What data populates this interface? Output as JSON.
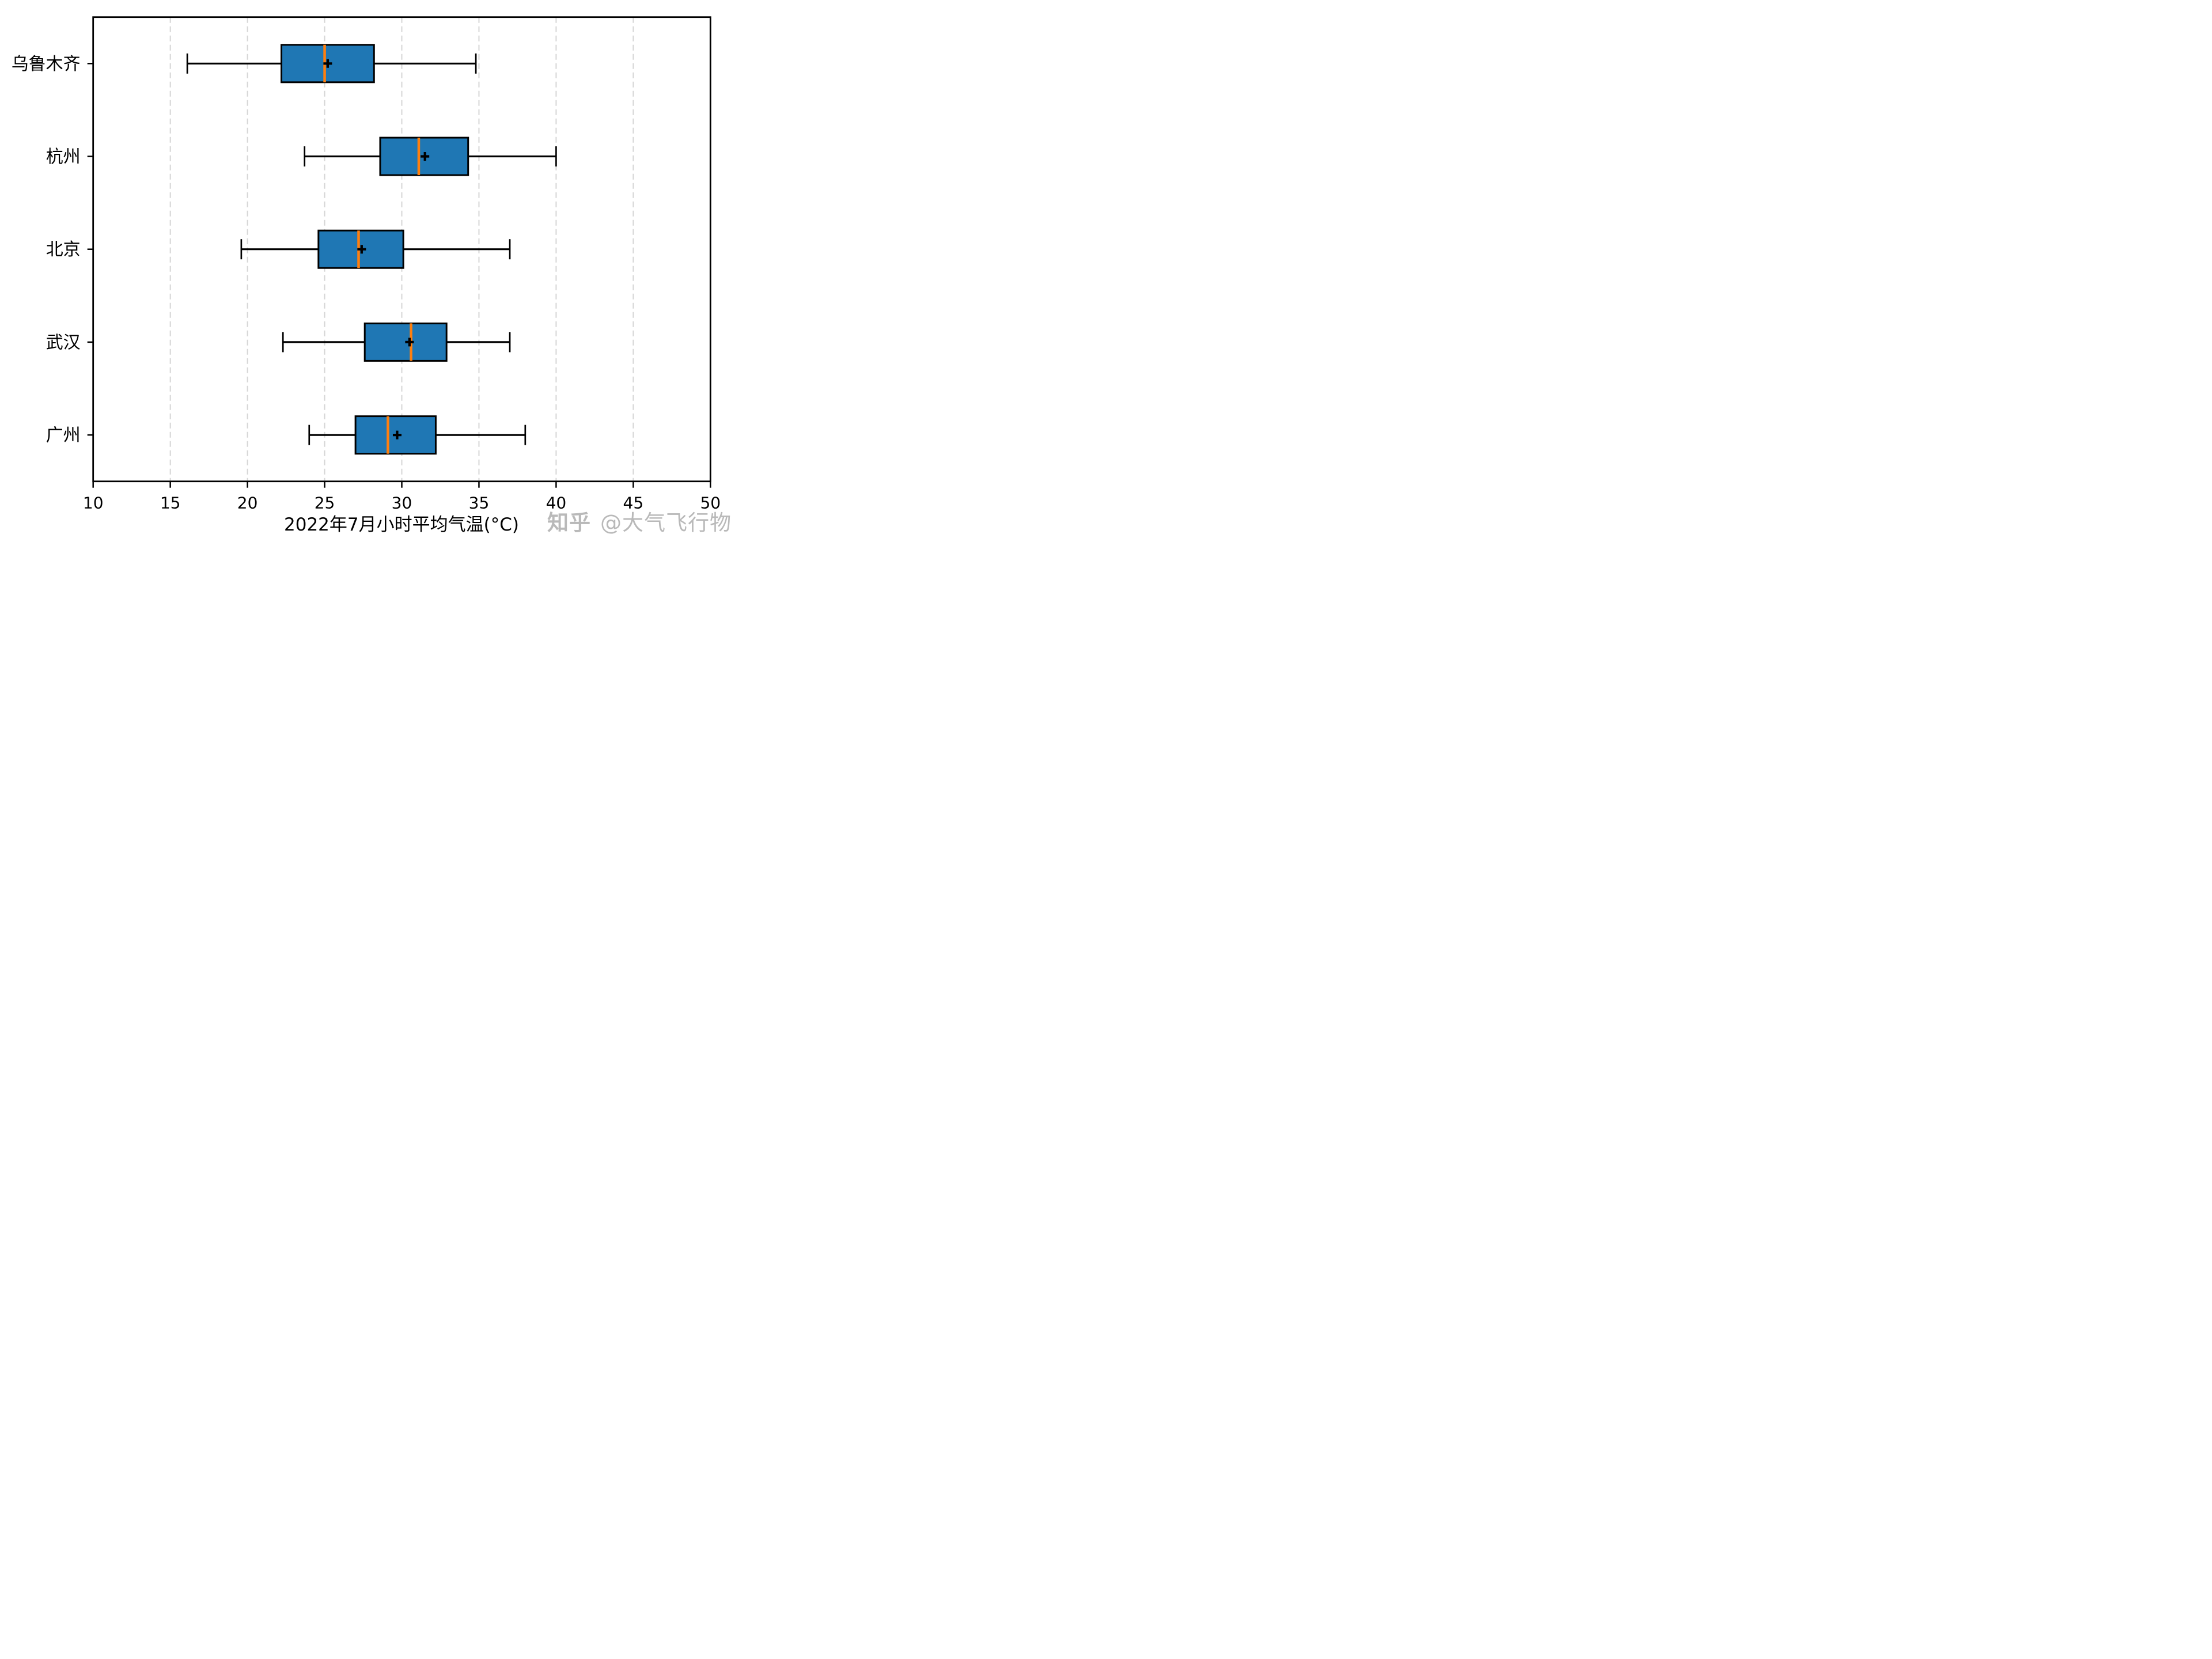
{
  "figure": {
    "background": "#ffffff"
  },
  "chart_data": {
    "type": "boxplot",
    "orientation": "horizontal",
    "xlabel": "2022年7月小时平均气温(°C)",
    "categories_top_to_bottom": [
      "乌鲁木齐",
      "杭州",
      "北京",
      "武汉",
      "广州"
    ],
    "series": [
      {
        "name": "乌鲁木齐",
        "whislo": 16.1,
        "q1": 22.2,
        "med": 25.0,
        "mean": 25.2,
        "q3": 28.2,
        "whishi": 34.8
      },
      {
        "name": "杭州",
        "whislo": 23.7,
        "q1": 28.6,
        "med": 31.1,
        "mean": 31.5,
        "q3": 34.3,
        "whishi": 40.0
      },
      {
        "name": "北京",
        "whislo": 19.6,
        "q1": 24.6,
        "med": 27.2,
        "mean": 27.4,
        "q3": 30.1,
        "whishi": 37.0
      },
      {
        "name": "武汉",
        "whislo": 22.3,
        "q1": 27.6,
        "med": 30.6,
        "mean": 30.5,
        "q3": 32.9,
        "whishi": 37.0
      },
      {
        "name": "广州",
        "whislo": 24.0,
        "q1": 27.0,
        "med": 29.1,
        "mean": 29.7,
        "q3": 32.2,
        "whishi": 38.0
      }
    ],
    "xlim": [
      10,
      50
    ],
    "xticks": [
      10,
      15,
      20,
      25,
      30,
      35,
      40,
      45,
      50
    ],
    "grid": {
      "axis": "x",
      "style": "dashed",
      "color": "#d5d5d5"
    },
    "legend": "none",
    "colors": {
      "box_fill": "#1f77b4",
      "box_edge": "#000000",
      "median": "#ff7f0e",
      "whisker": "#000000",
      "cap": "#000000",
      "mean_marker": "#000000",
      "frame": "#000000"
    },
    "mean_marker": "plus"
  },
  "watermark": {
    "brand": "知乎",
    "author": "@大气飞行物",
    "color": "#b9b9b9"
  }
}
